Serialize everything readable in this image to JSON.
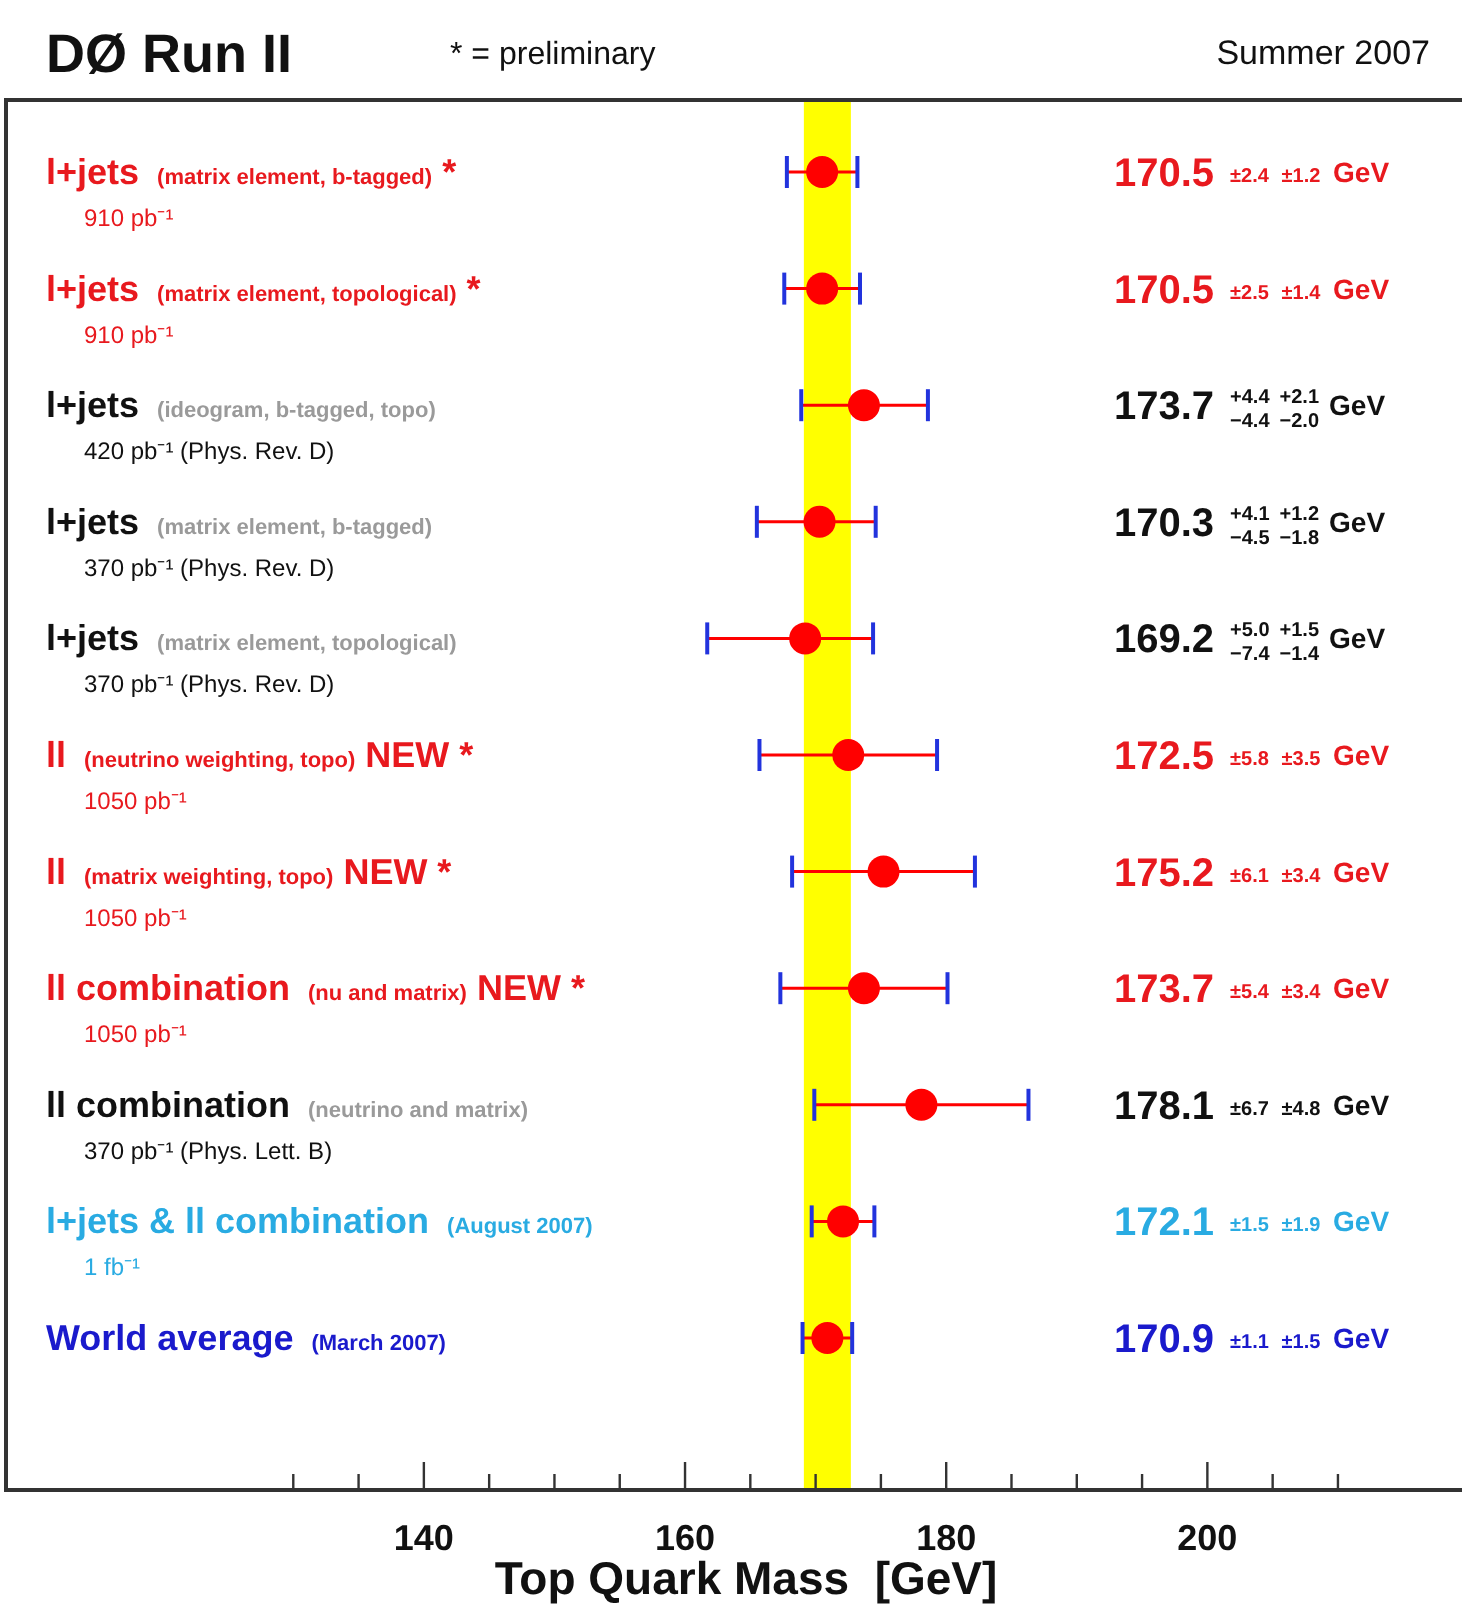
{
  "chart_data": {
    "type": "scatter",
    "orientation": "horizontal",
    "title": "DØ Run II",
    "subtitle": "* = preliminary",
    "xlabel": "Top Quark Mass  [GeV]",
    "annotations": [
      "Summer 2007",
      "170.5 ±2.4 ±1.2 GeV",
      "170.5 ±2.5 ±1.4 GeV",
      "173.7 $^{+4.4}$$_{−4.4}$ $^{+2.1}$$_{−2.0}$ GeV",
      "170.3 $^{+4.1}$$_{−4.5}$ $^{+1.2}$$_{−1.8}$ GeV",
      "169.2 $^{+5.0}$$_{−7.4}$ $^{+1.5}$$_{−1.4}$ GeV",
      "172.5 ±5.8 ±3.5 GeV",
      "175.2 ±6.1 ±3.4 GeV",
      "173.7 ±5.4 ±3.4 GeV",
      "178.1 ±6.7 ±4.8 GeV",
      "172.1 ±1.5 ±1.9 GeV",
      "170.9 ±1.1 ±1.5 GeV"
    ],
    "categories": [
      "l+jets (matrix element, b-tagged) *\n910 pb⁻¹",
      "l+jets (matrix element, topological) *\n910 pb⁻¹",
      "l+jets (ideogram, b-tagged, topo)\n420 pb⁻¹  (Phys. Rev. D)",
      "l+jets (matrix element, b-tagged)\n370 pb⁻¹  (Phys. Rev. D)",
      "l+jets (matrix element, topological)\n370 pb⁻¹  (Phys. Rev. D)",
      "ll (neutrino weighting, topo) NEW *\n1050 pb⁻¹",
      "ll (matrix weighting, topo) NEW *\n1050 pb⁻¹",
      "ll combination (nu and matrix) NEW *\n1050 pb⁻¹",
      "ll combination (neutrino and matrix)\n370 pb⁻¹  (Phys. Lett. B)",
      "l+jets & ll combination (August 2007)\n1 fb⁻¹",
      "World average (March 2007)"
    ],
    "values": [
      170.5,
      170.5,
      173.7,
      170.3,
      169.2,
      172.5,
      175.2,
      173.7,
      178.1,
      172.1,
      170.9
    ],
    "errors": [
      2.7,
      2.9,
      [
        168.9,
        178.6
      ],
      [
        165.5,
        174.6
      ],
      [
        161.7,
        174.4
      ],
      6.8,
      7.0,
      6.4,
      8.2,
      2.4,
      1.9
    ],
    "color": "#ff0000",
    "marker": "circle",
    "bands": [
      {
        "axis": "x",
        "from": 169.1,
        "to": 172.7,
        "color": "#ffff00"
      }
    ],
    "xlim": [
      108,
      219.5
    ],
    "xticks": [
      {
        "value": 130,
        "label": null
      },
      {
        "value": 135,
        "label": null
      },
      140,
      {
        "value": 145,
        "label": null
      },
      {
        "value": 150,
        "label": null
      },
      {
        "value": 155,
        "label": null
      },
      160,
      {
        "value": 165,
        "label": null
      },
      {
        "value": 170,
        "label": null
      },
      {
        "value": 175,
        "label": null
      },
      180,
      {
        "value": 185,
        "label": null
      },
      {
        "value": 190,
        "label": null
      },
      {
        "value": 195,
        "label": null
      },
      200,
      {
        "value": 205,
        "label": null
      },
      {
        "value": 210,
        "label": null
      }
    ],
    "tick_labels": "x"
  }
}
